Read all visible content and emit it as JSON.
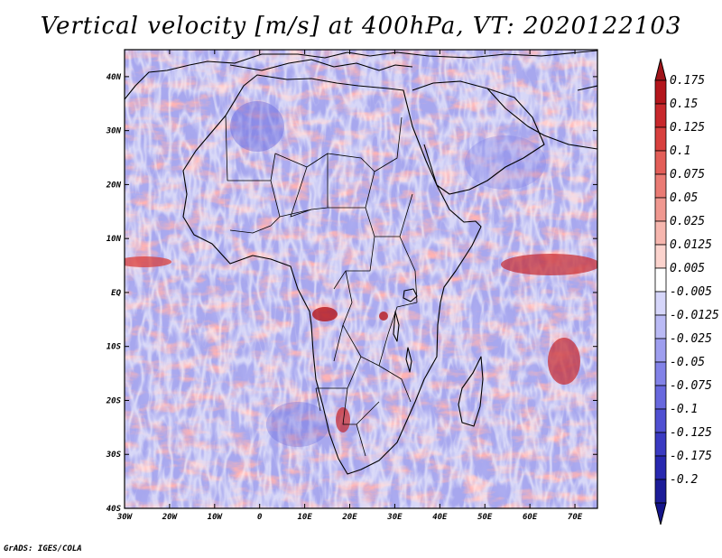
{
  "title": "Vertical velocity [m/s] at 400hPa, VT: 2020122103",
  "credit": "GrADS: IGES/COLA",
  "map": {
    "region": "Africa",
    "lon_range": [
      -30,
      75
    ],
    "lat_range": [
      -40,
      45
    ],
    "lat_ticks": [
      {
        "value": 40,
        "label": "40N"
      },
      {
        "value": 30,
        "label": "30N"
      },
      {
        "value": 20,
        "label": "20N"
      },
      {
        "value": 10,
        "label": "10N"
      },
      {
        "value": 0,
        "label": "EQ"
      },
      {
        "value": -10,
        "label": "10S"
      },
      {
        "value": -20,
        "label": "20S"
      },
      {
        "value": -30,
        "label": "30S"
      },
      {
        "value": -40,
        "label": "40S"
      }
    ],
    "lon_ticks": [
      {
        "value": -30,
        "label": "30W"
      },
      {
        "value": -20,
        "label": "20W"
      },
      {
        "value": -10,
        "label": "10W"
      },
      {
        "value": 0,
        "label": "0"
      },
      {
        "value": 10,
        "label": "10E"
      },
      {
        "value": 20,
        "label": "20E"
      },
      {
        "value": 30,
        "label": "30E"
      },
      {
        "value": 40,
        "label": "40E"
      },
      {
        "value": 50,
        "label": "50E"
      },
      {
        "value": 60,
        "label": "60E"
      },
      {
        "value": 70,
        "label": "70E"
      }
    ]
  },
  "colorbar": {
    "levels": [
      {
        "label": "0.175",
        "color": "#b4161c"
      },
      {
        "label": "0.15",
        "color": "#c8282c"
      },
      {
        "label": "0.125",
        "color": "#d8403e"
      },
      {
        "label": "0.1",
        "color": "#e35e58"
      },
      {
        "label": "0.075",
        "color": "#ea7b74"
      },
      {
        "label": "0.05",
        "color": "#f09890"
      },
      {
        "label": "0.025",
        "color": "#f6b6ae"
      },
      {
        "label": "0.0125",
        "color": "#fbd3cd"
      },
      {
        "label": "0.005",
        "color": "#ffffff"
      },
      {
        "label": "-0.005",
        "color": "#d6d6fa"
      },
      {
        "label": "-0.0125",
        "color": "#babaf5"
      },
      {
        "label": "-0.025",
        "color": "#9e9eef"
      },
      {
        "label": "-0.05",
        "color": "#8282e8"
      },
      {
        "label": "-0.075",
        "color": "#6868de"
      },
      {
        "label": "-0.1",
        "color": "#5050d2"
      },
      {
        "label": "-0.125",
        "color": "#3a3ac2"
      },
      {
        "label": "-0.175",
        "color": "#2828b0"
      },
      {
        "label": "-0.2",
        "color": "#1c1c98"
      }
    ],
    "top_color": "#a0141a",
    "bottom_color": "#14148a"
  }
}
